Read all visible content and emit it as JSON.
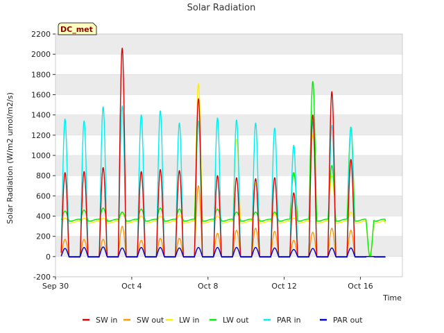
{
  "chart_data": {
    "type": "line",
    "title": "Solar Radiation",
    "xlabel": "Time",
    "ylabel": "Solar Radiation (W/m2 umol/m2/s)",
    "ylim": [
      -200,
      2200
    ],
    "yticks": [
      -200,
      0,
      200,
      400,
      600,
      800,
      1000,
      1200,
      1400,
      1600,
      1800,
      2000,
      2200
    ],
    "xlim_days": [
      0,
      18.2
    ],
    "xticks": [
      {
        "label": "Sep 30",
        "day": 0
      },
      {
        "label": "Oct 4",
        "day": 4
      },
      {
        "label": "Oct 8",
        "day": 8
      },
      {
        "label": "Oct 12",
        "day": 12
      },
      {
        "label": "Oct 16",
        "day": 16
      }
    ],
    "grid": "horizontal bands",
    "legend_position": "bottom",
    "site_label": "DC_met",
    "data_start_day": 0.3,
    "data_end_day": 17.3,
    "series": [
      {
        "name": "SW in",
        "color": "#dd0000",
        "daily_peaks": [
          830,
          840,
          880,
          2060,
          840,
          860,
          850,
          1560,
          800,
          780,
          770,
          780,
          630,
          1400,
          1630,
          960,
          0
        ]
      },
      {
        "name": "SW out",
        "color": "#ff9900",
        "daily_peaks": [
          170,
          170,
          170,
          300,
          160,
          180,
          180,
          700,
          230,
          260,
          280,
          250,
          160,
          240,
          280,
          260,
          0
        ]
      },
      {
        "name": "LW in",
        "color": "#ffee00",
        "base": 340,
        "daily_peaks": [
          380,
          380,
          380,
          430,
          400,
          400,
          410,
          1710,
          400,
          1160,
          720,
          420,
          380,
          1210,
          800,
          440,
          0
        ]
      },
      {
        "name": "LW out",
        "color": "#00ee00",
        "base": 360,
        "daily_peaks": [
          450,
          460,
          480,
          440,
          470,
          480,
          470,
          1340,
          470,
          440,
          440,
          440,
          830,
          1730,
          900,
          1280,
          0
        ]
      },
      {
        "name": "PAR in",
        "color": "#00eeee",
        "daily_peaks": [
          1360,
          1340,
          1480,
          1490,
          1400,
          1440,
          1320,
          1340,
          1370,
          1350,
          1320,
          1270,
          1100,
          1330,
          1300,
          1280,
          0
        ]
      },
      {
        "name": "PAR out",
        "color": "#0000cc",
        "daily_peaks": [
          80,
          90,
          95,
          85,
          90,
          90,
          85,
          90,
          90,
          90,
          90,
          85,
          70,
          80,
          85,
          85,
          0
        ]
      }
    ]
  }
}
